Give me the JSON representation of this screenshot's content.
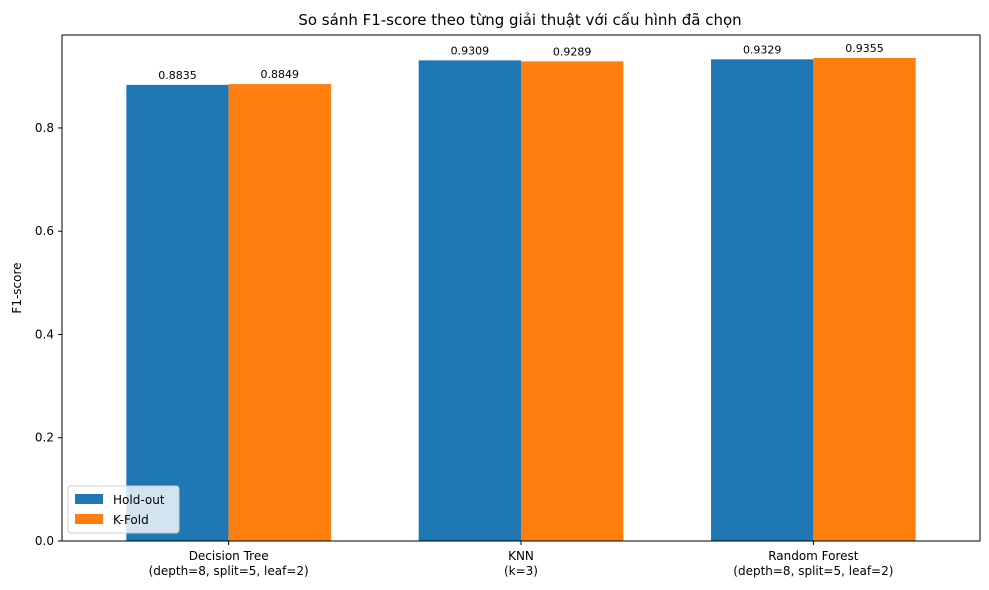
{
  "chart_data": {
    "type": "bar",
    "title": "So sánh F1-score theo từng giải thuật với cấu hình đã chọn",
    "xlabel": "",
    "ylabel": "F1-score",
    "ylim": [
      0,
      0.98
    ],
    "yticks": [
      0.0,
      0.2,
      0.4,
      0.6,
      0.8
    ],
    "grid": false,
    "legend_position": "lower-left",
    "categories": [
      [
        "Decision Tree",
        "(depth=8, split=5, leaf=2)"
      ],
      [
        "KNN",
        "(k=3)"
      ],
      [
        "Random Forest",
        "(depth=8, split=5, leaf=2)"
      ]
    ],
    "series": [
      {
        "name": "Hold-out",
        "color": "#1f77b4",
        "values": [
          0.8835,
          0.9309,
          0.9329
        ],
        "labels": [
          "0.8835",
          "0.9309",
          "0.9329"
        ]
      },
      {
        "name": "K-Fold",
        "color": "#ff7f0e",
        "values": [
          0.8849,
          0.9289,
          0.9355
        ],
        "labels": [
          "0.8849",
          "0.9289",
          "0.9355"
        ]
      }
    ]
  }
}
